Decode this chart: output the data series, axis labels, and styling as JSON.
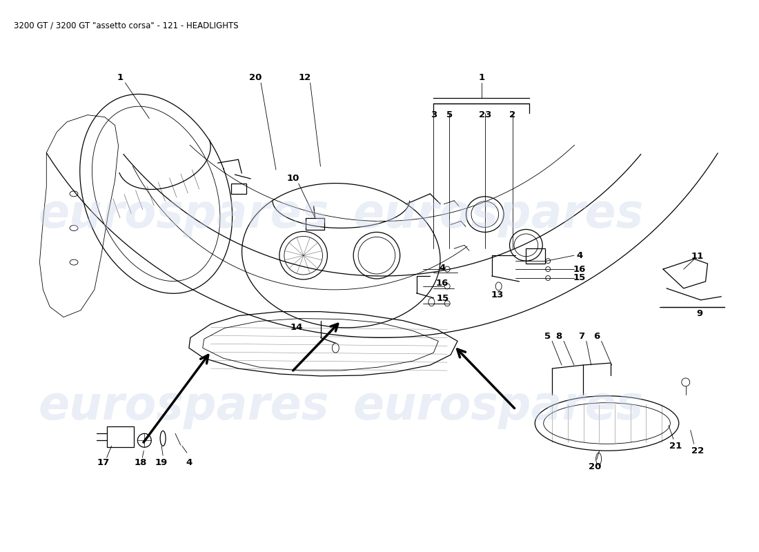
{
  "title": "3200 GT / 3200 GT \"assetto corsa\" - 121 - HEADLIGHTS",
  "title_fontsize": 8.5,
  "background_color": "#ffffff",
  "line_color": "#000000",
  "watermark_text": "eurospares",
  "watermark_color": "#c8d4e8",
  "watermark_alpha": 0.38,
  "fig_width": 11.0,
  "fig_height": 8.0,
  "dpi": 100,
  "lw_main": 0.9,
  "lw_thick": 2.5,
  "lw_thin": 0.6,
  "callout_fs": 9.5
}
